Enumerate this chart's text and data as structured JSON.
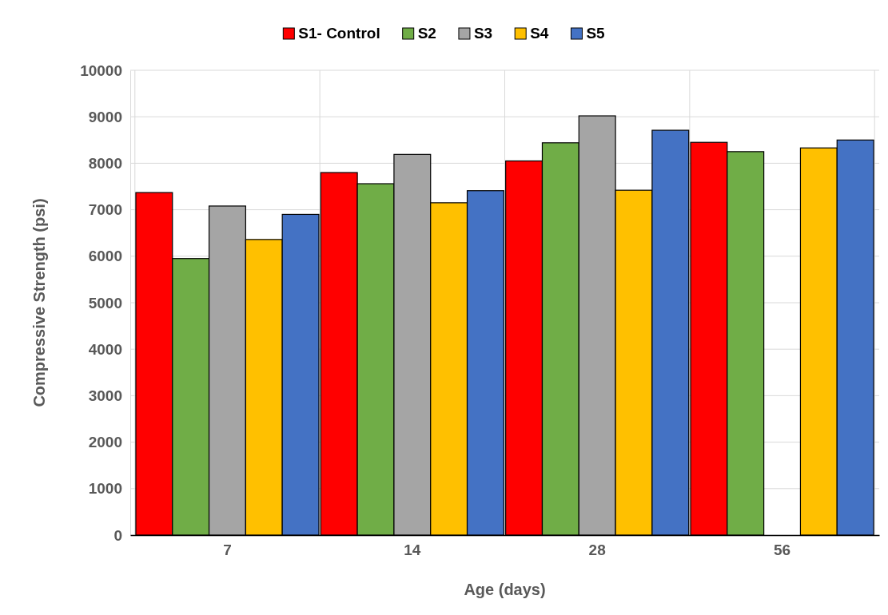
{
  "chart_data": {
    "type": "bar",
    "xlabel": "Age (days)",
    "ylabel": "Compressive Strength (psi)",
    "categories": [
      "7",
      "14",
      "28",
      "56"
    ],
    "series": [
      {
        "name": "S1- Control",
        "color": "#ff0000",
        "values": [
          7370,
          7800,
          8050,
          8450
        ]
      },
      {
        "name": "S2",
        "color": "#70ad47",
        "values": [
          5950,
          7560,
          8440,
          8250
        ]
      },
      {
        "name": "S3",
        "color": "#a5a5a5",
        "values": [
          7080,
          8190,
          9020,
          null
        ]
      },
      {
        "name": "S4",
        "color": "#ffc000",
        "values": [
          6360,
          7150,
          7420,
          8330
        ]
      },
      {
        "name": "S5",
        "color": "#4472c4",
        "values": [
          6900,
          7410,
          8710,
          8500
        ]
      }
    ],
    "ylim": [
      0,
      10000
    ],
    "yticks": [
      0,
      1000,
      2000,
      3000,
      4000,
      5000,
      6000,
      7000,
      8000,
      9000,
      10000
    ],
    "grid": true,
    "legend": "top"
  }
}
